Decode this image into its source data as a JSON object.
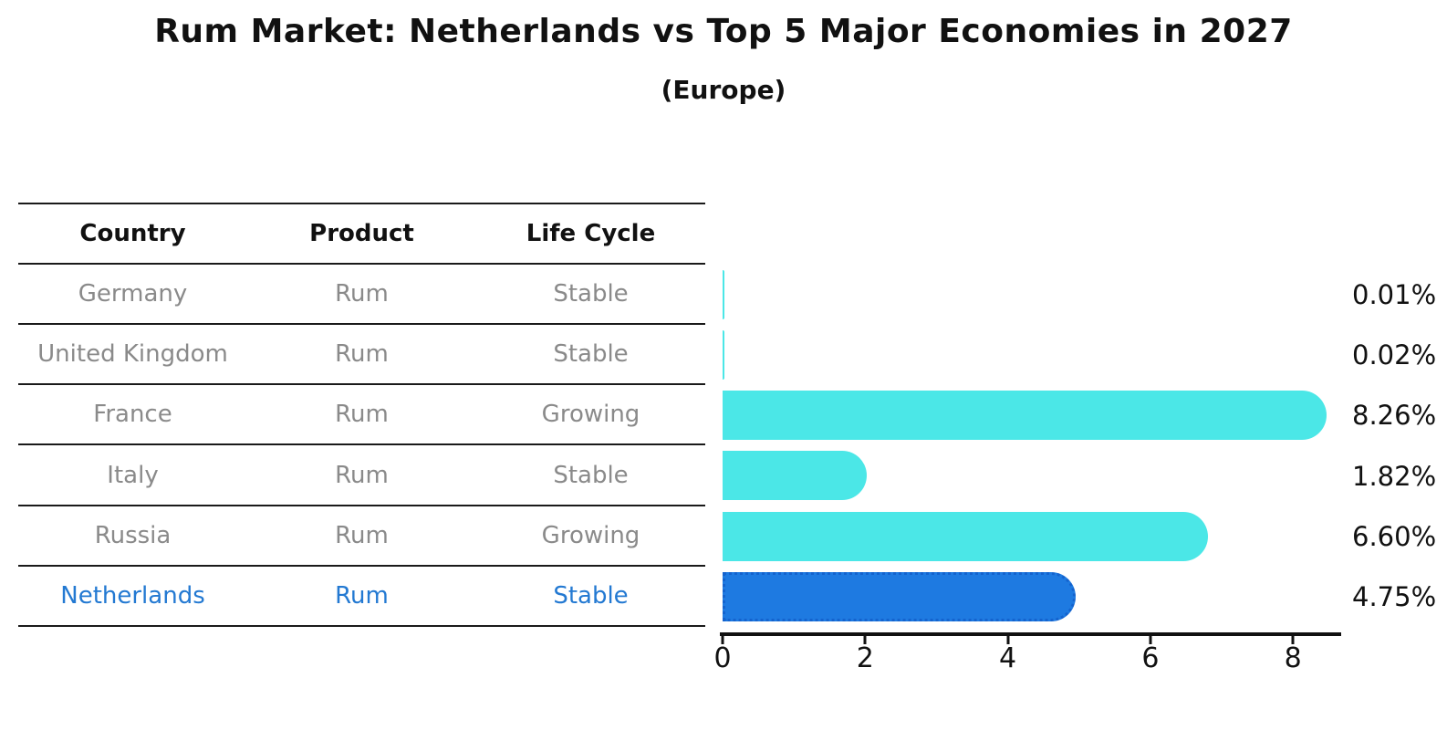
{
  "title": "Rum Market: Netherlands vs Top 5 Major Economies in 2027",
  "subtitle": "(Europe)",
  "table": {
    "columns": [
      "Country",
      "Product",
      "Life Cycle"
    ],
    "rows": [
      {
        "country": "Germany",
        "product": "Rum",
        "life_cycle": "Stable",
        "highlight": false
      },
      {
        "country": "United Kingdom",
        "product": "Rum",
        "life_cycle": "Stable",
        "highlight": false
      },
      {
        "country": "France",
        "product": "Rum",
        "life_cycle": "Growing",
        "highlight": false
      },
      {
        "country": "Italy",
        "product": "Rum",
        "life_cycle": "Stable",
        "highlight": false
      },
      {
        "country": "Russia",
        "product": "Rum",
        "life_cycle": "Growing",
        "highlight": false
      },
      {
        "country": "Netherlands",
        "product": "Rum",
        "life_cycle": "Stable",
        "highlight": true
      }
    ]
  },
  "chart_data": {
    "type": "bar",
    "orientation": "horizontal",
    "title": "Rum Market: Netherlands vs Top 5 Major Economies in 2027",
    "subtitle": "(Europe)",
    "categories": [
      "Germany",
      "United Kingdom",
      "France",
      "Italy",
      "Russia",
      "Netherlands"
    ],
    "values": [
      0.01,
      0.02,
      8.26,
      1.82,
      6.6,
      4.75
    ],
    "value_labels": [
      "0.01%",
      "0.02%",
      "8.26%",
      "1.82%",
      "6.60%",
      "4.75%"
    ],
    "xlabel": "",
    "ylabel": "",
    "xlim": [
      0,
      8.65
    ],
    "xticks": [
      0,
      2,
      4,
      6,
      8
    ],
    "grid": false,
    "legend_position": "none",
    "highlight_category": "Netherlands",
    "highlight_index": 5
  },
  "colors": {
    "bar": "#4BE7E7",
    "highlight_bar": "#1E7AE1",
    "highlight_border": "#1463CE",
    "highlight_text": "#2379D2",
    "row_text": "#8A8A8A",
    "table_line": "#1A1A1A"
  }
}
